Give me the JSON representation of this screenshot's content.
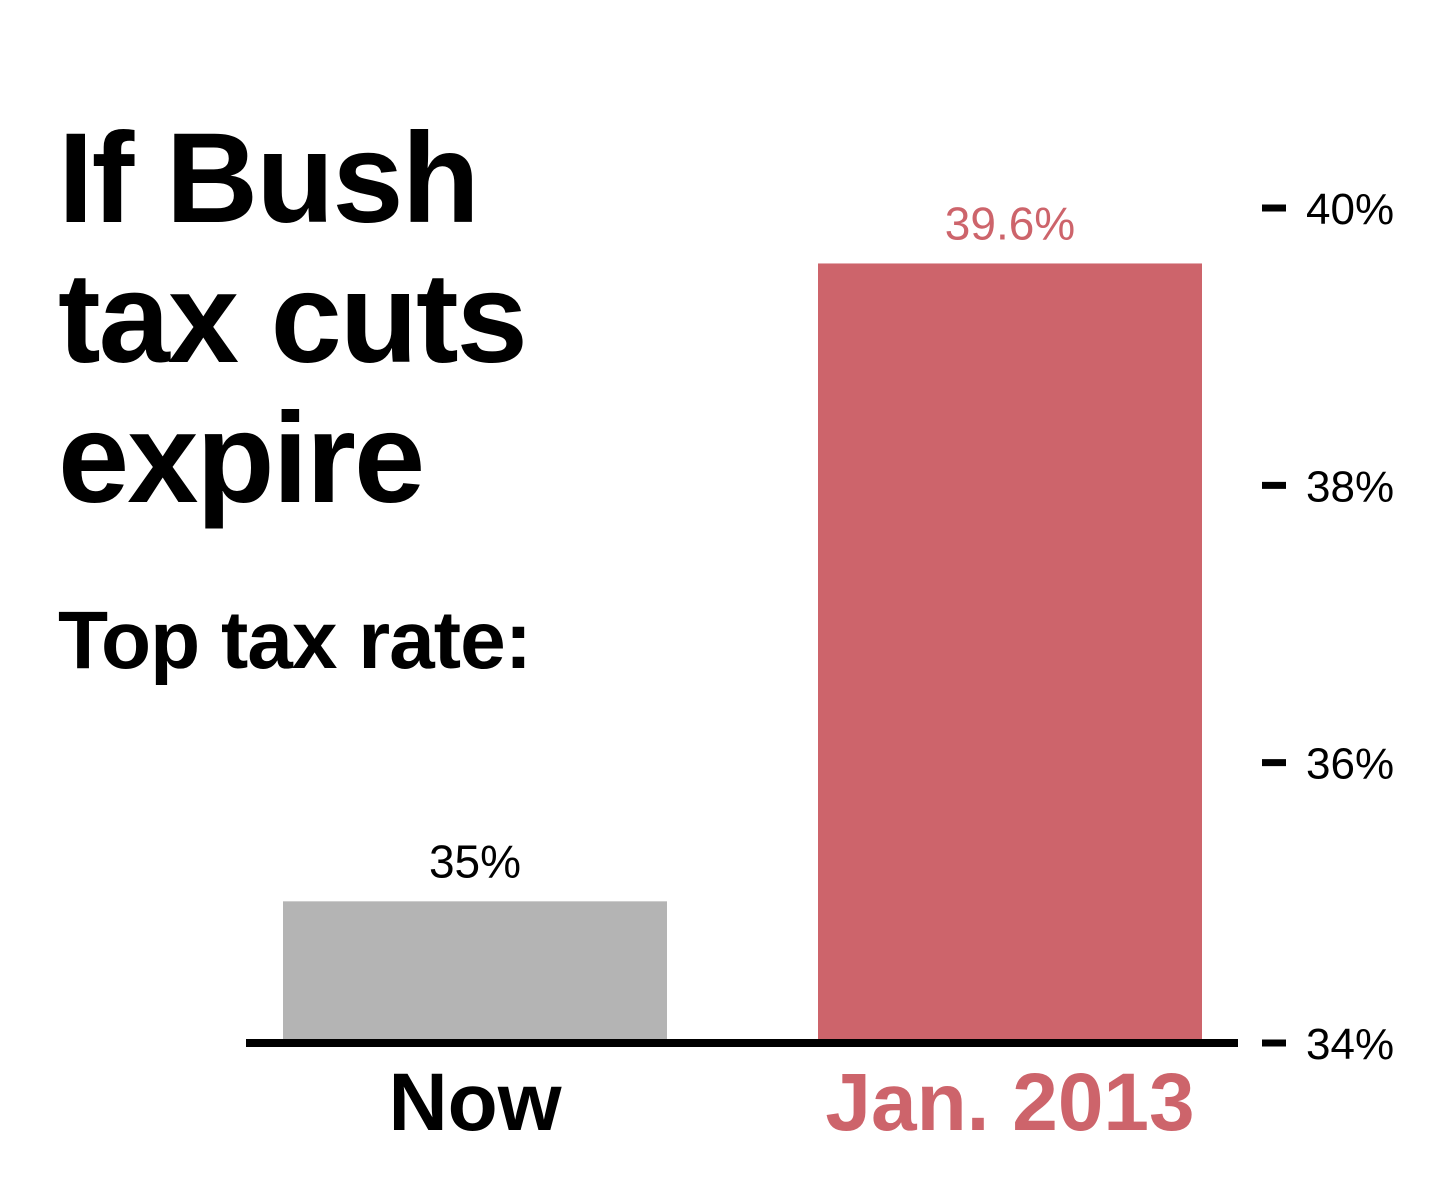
{
  "chart_data": {
    "type": "bar",
    "title": [
      "If Bush",
      "tax cuts",
      "expire"
    ],
    "subtitle": "Top tax rate:",
    "categories": [
      "Now",
      "Jan. 2013"
    ],
    "values": [
      35,
      39.6
    ],
    "data_labels": [
      "35%",
      "39.6%"
    ],
    "colors": [
      "#b4b4b4",
      "#cd646b"
    ],
    "label_colors": [
      "#000000",
      "#cd646b"
    ],
    "ylim": [
      34,
      40
    ],
    "yticks": [
      40,
      38,
      36,
      34
    ],
    "ytick_labels": [
      "40%",
      "38%",
      "36%",
      "34%"
    ],
    "axis_side": "right",
    "grid": false,
    "legend": "none",
    "xlabel": "",
    "ylabel": ""
  }
}
